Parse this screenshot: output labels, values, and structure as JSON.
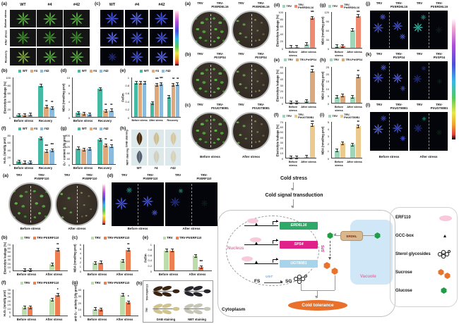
{
  "figure": {
    "blockA": {
      "panel_a": "(a)",
      "panel_c": "(c)",
      "cols": [
        "WT",
        "#4",
        "#42"
      ],
      "rows": [
        "Before stress",
        "After stress",
        "Recovery"
      ]
    },
    "blockH": {
      "panel": "(h)",
      "rows": [
        "DAB staining",
        "NBT staining"
      ],
      "cols": [
        "WT",
        "#4",
        "#42"
      ]
    },
    "blockC": {
      "rows": [
        {
          "label": "(a)",
          "trv": "TRV",
          "kd": "TRV-\nPtrERD6L16"
        },
        {
          "label": "(b)",
          "trv": "TRV",
          "kd": "TRV-\nPtrSPS4"
        },
        {
          "label": "(c)",
          "trv": "TRV",
          "kd": "TRV-\nPtrUGT80B1"
        }
      ],
      "bottom": [
        "Before stress",
        "After stress"
      ]
    },
    "blockE": {
      "rows": [
        {
          "label": "(j)",
          "trv": "TRV",
          "kd": "TRV-\nPtrERD6L16"
        },
        {
          "label": "(k)",
          "trv": "TRV",
          "kd": "TRV-\nPtrSPS4"
        },
        {
          "label": "(l)",
          "trv": "TRV",
          "kd": "TRV-\nPtrUGT80B1"
        }
      ],
      "bottom": [
        "Before stress",
        "After stress"
      ]
    },
    "blockF": {
      "panel_a": "(a)",
      "panel_d": "(d)",
      "panel_h": "(h)",
      "trv": "TRV",
      "kd": "TRV-\nPtrERF110",
      "bottom": [
        "Before stress",
        "After stress"
      ],
      "stain_rows": [
        "TRV-PtrERF110",
        "TRV"
      ],
      "stain_cols": [
        "DAB staining",
        "NBT staining"
      ]
    }
  },
  "chart_data": [
    {
      "id": "A-b",
      "type": "bar",
      "panel": "(b)",
      "ylabel": "Electrolyte leakage (%)",
      "ymax": 100,
      "yticks": [
        0,
        20,
        40,
        60,
        80,
        100
      ],
      "categories": [
        "Before stress",
        "Recovery"
      ],
      "series": [
        {
          "name": "WT",
          "color": "#46b9a4",
          "values": [
            5,
            78
          ],
          "sig": [
            "",
            ""
          ]
        },
        {
          "name": "#4",
          "color": "#dfa87b",
          "values": [
            5,
            25
          ],
          "sig": [
            "",
            "**"
          ]
        },
        {
          "name": "#42",
          "color": "#8abbdc",
          "values": [
            6,
            22
          ],
          "sig": [
            "",
            "**"
          ]
        }
      ]
    },
    {
      "id": "A-d",
      "type": "bar",
      "panel": "(d)",
      "ylabel": "MDA (nmol/mg prot)",
      "ymax": 10,
      "yticks": [
        0,
        2,
        4,
        6,
        8,
        10
      ],
      "categories": [
        "Before stress",
        "Recovery"
      ],
      "series": [
        {
          "name": "WT",
          "color": "#46b9a4",
          "values": [
            1,
            7
          ],
          "sig": [
            "",
            ""
          ]
        },
        {
          "name": "#4",
          "color": "#dfa87b",
          "values": [
            0.8,
            1.5
          ],
          "sig": [
            "",
            "**"
          ]
        },
        {
          "name": "#42",
          "color": "#8abbdc",
          "values": [
            0.7,
            1.6
          ],
          "sig": [
            "",
            "**"
          ]
        }
      ]
    },
    {
      "id": "A-e",
      "type": "bar",
      "panel": "(e)",
      "ylabel": "Fv/Fm",
      "ymax": 1,
      "yticks": [
        0,
        0.2,
        0.4,
        0.6,
        0.8,
        1
      ],
      "categories": [
        "Before stress",
        "After stress",
        "Recovery"
      ],
      "series": [
        {
          "name": "WT",
          "color": "#46b9a4",
          "values": [
            0.85,
            0.35,
            0.5
          ],
          "sig": [
            "",
            "",
            ""
          ]
        },
        {
          "name": "#4",
          "color": "#dfa87b",
          "values": [
            0.85,
            0.8,
            0.8
          ],
          "sig": [
            "",
            "***",
            "**"
          ]
        },
        {
          "name": "#42",
          "color": "#8abbdc",
          "values": [
            0.85,
            0.82,
            0.81
          ],
          "sig": [
            "",
            "***",
            "**"
          ]
        }
      ]
    },
    {
      "id": "A-f",
      "type": "bar",
      "panel": "(f)",
      "ylabel": "H₂O₂ (nmol/g prot)",
      "ymax": 80,
      "yticks": [
        0,
        20,
        40,
        60,
        80
      ],
      "categories": [
        "Before stress",
        "Recovery"
      ],
      "series": [
        {
          "name": "WT",
          "color": "#46b9a4",
          "values": [
            7,
            70
          ],
          "sig": [
            "",
            ""
          ]
        },
        {
          "name": "#4",
          "color": "#dfa87b",
          "values": [
            4,
            35
          ],
          "sig": [
            "",
            "***"
          ]
        },
        {
          "name": "#42",
          "color": "#8abbdc",
          "values": [
            5,
            38
          ],
          "sig": [
            "",
            "***"
          ]
        }
      ]
    },
    {
      "id": "A-g",
      "type": "bar",
      "panel": "(g)",
      "ylabel": "O₂⁻ content (U/g prot)",
      "ymax": 200,
      "yticks": [
        0,
        40,
        80,
        120,
        160,
        200
      ],
      "categories": [
        "Before stress",
        "Recovery"
      ],
      "series": [
        {
          "name": "WT",
          "color": "#46b9a4",
          "values": [
            105,
            165
          ],
          "sig": [
            "",
            ""
          ]
        },
        {
          "name": "#4",
          "color": "#dfa87b",
          "values": [
            100,
            128
          ],
          "sig": [
            "",
            "**"
          ]
        },
        {
          "name": "#42",
          "color": "#8abbdc",
          "values": [
            103,
            120
          ],
          "sig": [
            "",
            "**"
          ]
        }
      ]
    },
    {
      "id": "M-d",
      "type": "bar",
      "panel": "(d)",
      "ylabel": "Electrolyte leakage (%)",
      "ymax": 100,
      "yticks": [
        0,
        20,
        40,
        60,
        80,
        100
      ],
      "categories": [
        "Before stress",
        "After stress"
      ],
      "series": [
        {
          "name": "TRV",
          "color": "#9ed4b8",
          "values": [
            2,
            10
          ],
          "sig": [
            "",
            ""
          ]
        },
        {
          "name": "TRV-PtrERD6L16",
          "color": "#ef8a70",
          "values": [
            2,
            82
          ],
          "sig": [
            "",
            "***"
          ]
        }
      ]
    },
    {
      "id": "M-g",
      "type": "bar",
      "panel": "(g)",
      "ylabel": "MDA (nmol/mg prot)",
      "ymax": 120,
      "yticks": [
        0,
        30,
        60,
        90,
        120
      ],
      "categories": [
        "Before stress",
        "After stress"
      ],
      "series": [
        {
          "name": "TRV",
          "color": "#9ed4b8",
          "values": [
            5,
            58
          ],
          "sig": [
            "",
            ""
          ]
        },
        {
          "name": "TRV-PtrERD6L16",
          "color": "#ef8a70",
          "values": [
            6,
            105
          ],
          "sig": [
            "",
            "***"
          ]
        }
      ]
    },
    {
      "id": "M-e",
      "type": "bar",
      "panel": "(e)",
      "ylabel": "Electrolyte leakage (%)",
      "ymax": 60,
      "yticks": [
        0,
        10,
        20,
        30,
        40,
        50,
        60
      ],
      "categories": [
        "Before stress",
        "After stress"
      ],
      "series": [
        {
          "name": "TRV",
          "color": "#9ed4b8",
          "values": [
            1,
            3
          ],
          "sig": [
            "",
            ""
          ]
        },
        {
          "name": "TRV-PtrSPS4",
          "color": "#d9a87c",
          "values": [
            1,
            52
          ],
          "sig": [
            "",
            "***"
          ]
        }
      ]
    },
    {
      "id": "M-h",
      "type": "bar",
      "panel": "(h)",
      "ylabel": "MDA (nmol/mg prot)",
      "ymax": 25,
      "yticks": [
        0,
        5,
        10,
        15,
        20,
        25
      ],
      "categories": [
        "Before stress",
        "After stress"
      ],
      "series": [
        {
          "name": "TRV",
          "color": "#9ed4b8",
          "values": [
            4,
            4
          ],
          "sig": [
            "",
            ""
          ]
        },
        {
          "name": "TRV-PtrSPS4",
          "color": "#d9a87c",
          "values": [
            5,
            18
          ],
          "sig": [
            "",
            "**"
          ]
        }
      ]
    },
    {
      "id": "M-f",
      "type": "bar",
      "panel": "(f)",
      "ylabel": "Electrolyte leakage (%)",
      "ymax": 70,
      "yticks": [
        0,
        10,
        20,
        30,
        40,
        50,
        60,
        70
      ],
      "categories": [
        "Before stress",
        "After stress"
      ],
      "series": [
        {
          "name": "TRV",
          "color": "#9ed4b8",
          "values": [
            1,
            2
          ],
          "sig": [
            "",
            ""
          ]
        },
        {
          "name": "TRV-PtrUGT80B1",
          "color": "#ecc98f",
          "values": [
            1,
            62
          ],
          "sig": [
            "",
            "***"
          ]
        }
      ]
    },
    {
      "id": "M-i",
      "type": "bar",
      "panel": "(i)",
      "ylabel": "MDA (nmol/mg prot)",
      "ymax": 5,
      "yticks": [
        0,
        1,
        2,
        3,
        4,
        5
      ],
      "categories": [
        "Before stress",
        "After stress"
      ],
      "series": [
        {
          "name": "TRV",
          "color": "#9ed4b8",
          "values": [
            1,
            1.8
          ],
          "sig": [
            "",
            ""
          ]
        },
        {
          "name": "TRV-PtrUGT80B1",
          "color": "#ecc98f",
          "values": [
            2,
            4.3
          ],
          "sig": [
            "",
            "**"
          ]
        }
      ]
    },
    {
      "id": "F-b",
      "type": "bar",
      "panel": "(b)",
      "ylabel": "Electrolyte leakage (%)",
      "ymax": 70,
      "yticks": [
        0,
        10,
        20,
        30,
        40,
        50,
        60,
        70
      ],
      "categories": [
        "Before stress",
        "After stress"
      ],
      "series": [
        {
          "name": "TRV",
          "color": "#bcdcab",
          "values": [
            1,
            16
          ],
          "sig": [
            "",
            ""
          ]
        },
        {
          "name": "TRV-PtrERF110",
          "color": "#ee7f52",
          "values": [
            1,
            54
          ],
          "sig": [
            "",
            "**"
          ]
        }
      ]
    },
    {
      "id": "F-c",
      "type": "bar",
      "panel": "(c)",
      "ylabel": "MDA (nmol/mg prot)",
      "ymax": 6,
      "yticks": [
        0,
        1,
        2,
        3,
        4,
        5,
        6
      ],
      "categories": [
        "Before stress",
        "After stress"
      ],
      "series": [
        {
          "name": "TRV",
          "color": "#bcdcab",
          "values": [
            1.7,
            2.2
          ],
          "sig": [
            "",
            ""
          ]
        },
        {
          "name": "TRV-PtrERF110",
          "color": "#ee7f52",
          "values": [
            1.8,
            4.6
          ],
          "sig": [
            "",
            "**"
          ]
        }
      ]
    },
    {
      "id": "F-e",
      "type": "bar",
      "panel": "(e)",
      "ylabel": "Fv/Fm",
      "ymax": 1,
      "yticks": [
        0,
        0.2,
        0.4,
        0.6,
        0.8,
        1
      ],
      "categories": [
        "Before stress",
        "After stress"
      ],
      "series": [
        {
          "name": "TRV",
          "color": "#bcdcab",
          "values": [
            0.74,
            0.55
          ],
          "sig": [
            "",
            ""
          ]
        },
        {
          "name": "TRV-PtrERF110",
          "color": "#ee7f52",
          "values": [
            0.75,
            0.12
          ],
          "sig": [
            "",
            "***"
          ]
        }
      ]
    },
    {
      "id": "F-f",
      "type": "bar",
      "panel": "(f)",
      "ylabel": "H₂O₂ (nmol/g prot)",
      "ymax": 35,
      "yticks": [
        0,
        5,
        10,
        15,
        20,
        25,
        30,
        35
      ],
      "categories": [
        "Before stress",
        "After stress"
      ],
      "series": [
        {
          "name": "TRV",
          "color": "#bcdcab",
          "values": [
            11,
            21
          ],
          "sig": [
            "",
            ""
          ]
        },
        {
          "name": "TRV-PtrERF110",
          "color": "#ee7f52",
          "values": [
            11,
            27
          ],
          "sig": [
            "",
            "*"
          ]
        }
      ]
    },
    {
      "id": "F-g",
      "type": "bar",
      "panel": "(g)",
      "ylabel": "anti O₂⁻ activity (U/g prot)",
      "ymax": 40,
      "yticks": [
        0,
        10,
        20,
        30,
        40
      ],
      "categories": [
        "Before stress",
        "After stress"
      ],
      "series": [
        {
          "name": "TRV",
          "color": "#bcdcab",
          "values": [
            10,
            31
          ],
          "sig": [
            "",
            ""
          ]
        },
        {
          "name": "TRV-PtrERF110",
          "color": "#ee7f52",
          "values": [
            9,
            20
          ],
          "sig": [
            "",
            "*"
          ]
        }
      ]
    }
  ],
  "diagram": {
    "cold_stress": "Cold stress",
    "signal": "Cold signal transduction",
    "nucleus": "Nucleus",
    "cytoplasm": "Cytoplasm",
    "vacuole": "Vacuole",
    "genes": [
      {
        "name": "ERD6L16",
        "color": "#2fa968"
      },
      {
        "name": "SPS4",
        "color": "#e0218a"
      },
      {
        "name": "UGT80B1",
        "color": "#a6d4ea"
      }
    ],
    "transporter": "ERD6L",
    "sps": "SPS",
    "ugt": "UGT",
    "fs": "FS",
    "sg": "SG",
    "cold_tolerance": "Cold tolerance",
    "colors": {
      "erf110": "#f7c9da",
      "sucrose": "#e8742c",
      "glucose": "#1f9e45",
      "tolerance": "#e8702a"
    },
    "legend": [
      "ERF110",
      "GCC-box",
      "Sterol glycosides",
      "Sucrose",
      "Glucose"
    ]
  }
}
